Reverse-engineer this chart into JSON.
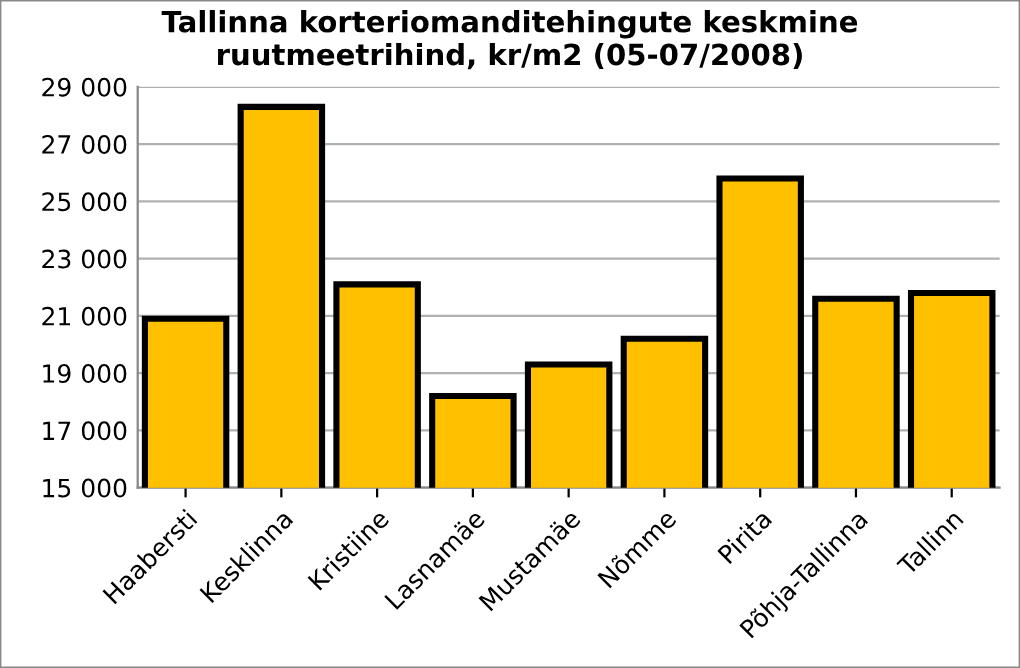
{
  "chart_data": {
    "type": "bar",
    "title": "Tallinna korteriomanditehingute keskmine\nruutmeetrihind, kr/m2 (05-07/2008)",
    "categories": [
      "Haabersti",
      "Kesklinna",
      "Kristiine",
      "Lasnamäe",
      "Mustamäe",
      "Nõmme",
      "Pirita",
      "Põhja-Tallinna",
      "Tallinn"
    ],
    "values": [
      20900,
      28300,
      22100,
      18200,
      19300,
      20200,
      25800,
      21600,
      21800
    ],
    "color": "#ffc000",
    "ylim": [
      15000,
      29000
    ],
    "yticks": [
      {
        "value": 15000,
        "label": "15 000"
      },
      {
        "value": 17000,
        "label": "17 000"
      },
      {
        "value": 19000,
        "label": "19 000"
      },
      {
        "value": 21000,
        "label": "21 000"
      },
      {
        "value": 23000,
        "label": "23 000"
      },
      {
        "value": 25000,
        "label": "25 000"
      },
      {
        "value": 27000,
        "label": "27 000"
      },
      {
        "value": 29000,
        "label": "29 000"
      }
    ],
    "grid": "y"
  }
}
